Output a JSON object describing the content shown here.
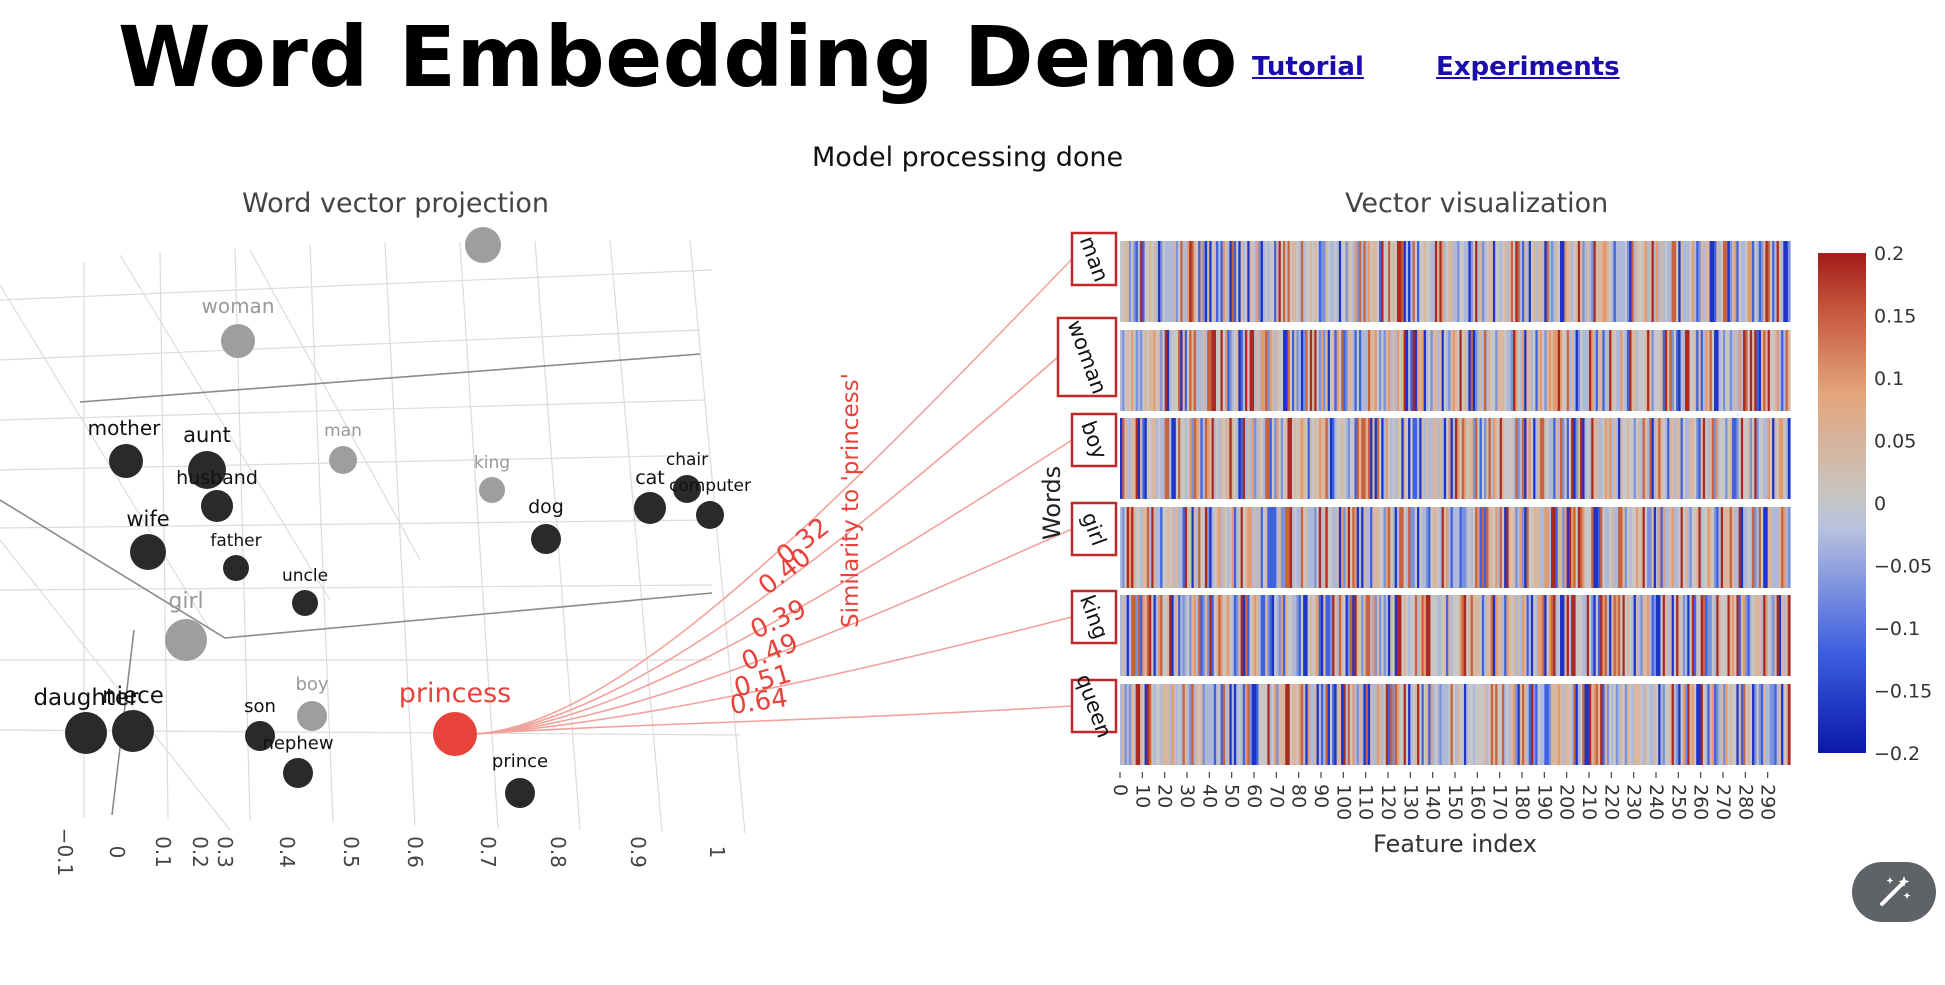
{
  "header": {
    "title": "Word Embedding Demo",
    "links": [
      "Tutorial",
      "Experiments"
    ],
    "status": "Model processing done"
  },
  "projection": {
    "title": "Word vector projection",
    "axis_ticks": [
      "−0.1",
      "0",
      "0.1",
      "0.2",
      "0.3",
      "0.4",
      "0.5",
      "0.6",
      "0.7",
      "0.8",
      "0.9",
      "1"
    ],
    "points": [
      {
        "word": "woman",
        "tone": "gray"
      },
      {
        "word": "man",
        "tone": "gray"
      },
      {
        "word": "king",
        "tone": "gray"
      },
      {
        "word": "girl",
        "tone": "gray"
      },
      {
        "word": "boy",
        "tone": "gray"
      },
      {
        "word": "mother",
        "tone": "dark"
      },
      {
        "word": "aunt",
        "tone": "dark"
      },
      {
        "word": "husband",
        "tone": "dark"
      },
      {
        "word": "wife",
        "tone": "dark"
      },
      {
        "word": "father",
        "tone": "dark"
      },
      {
        "word": "uncle",
        "tone": "dark"
      },
      {
        "word": "daughter",
        "tone": "dark"
      },
      {
        "word": "niece",
        "tone": "dark"
      },
      {
        "word": "son",
        "tone": "dark"
      },
      {
        "word": "nephew",
        "tone": "dark"
      },
      {
        "word": "prince",
        "tone": "dark"
      },
      {
        "word": "dog",
        "tone": "dark"
      },
      {
        "word": "cat",
        "tone": "dark"
      },
      {
        "word": "chair",
        "tone": "dark"
      },
      {
        "word": "computer",
        "tone": "dark"
      }
    ],
    "selected_word": "princess",
    "similarity_label": "Similarity to 'princess'",
    "similarities": [
      {
        "word": "man",
        "value": "0.32"
      },
      {
        "word": "woman",
        "value": "0.40"
      },
      {
        "word": "boy",
        "value": "0.39"
      },
      {
        "word": "girl",
        "value": "0.49"
      },
      {
        "word": "king",
        "value": "0.51"
      },
      {
        "word": "queen",
        "value": "0.64"
      }
    ]
  },
  "heatmap": {
    "title": "Vector visualization",
    "ylabel": "Words",
    "xlabel": "Feature index",
    "words": [
      "man",
      "woman",
      "boy",
      "girl",
      "king",
      "queen"
    ],
    "x_ticks": [
      "0",
      "10",
      "20",
      "30",
      "40",
      "50",
      "60",
      "70",
      "80",
      "90",
      "100",
      "110",
      "120",
      "130",
      "140",
      "150",
      "160",
      "170",
      "180",
      "190",
      "200",
      "210",
      "220",
      "230",
      "240",
      "250",
      "260",
      "270",
      "280",
      "290"
    ],
    "n_features": 300,
    "colorbar_ticks": [
      "0.2",
      "0.15",
      "0.1",
      "0.05",
      "0",
      "−0.05",
      "−0.1",
      "−0.15",
      "−0.2"
    ],
    "colorscale": [
      "#0a18a8",
      "#3d5ee0",
      "#b8c2de",
      "#c8c4c0",
      "#e3a57a",
      "#c85a3e",
      "#a21c1c"
    ]
  },
  "colors": {
    "accent": "#e8433a",
    "dark_point": "#2a2a2a",
    "gray_point": "#9e9e9e",
    "link": "#1a0dab"
  },
  "fab_icon": "magic-wand-icon"
}
